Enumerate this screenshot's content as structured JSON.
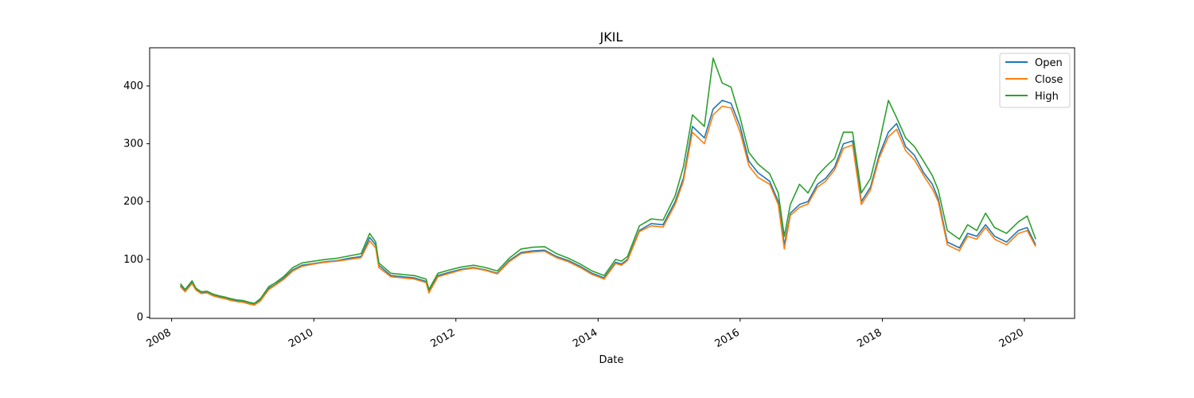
{
  "chart_data": {
    "type": "line",
    "title": "JKIL",
    "xlabel": "Date",
    "ylabel": "",
    "xlim": [
      "2007-09-10",
      "2020-09-15"
    ],
    "ylim": [
      -2,
      466
    ],
    "x_ticks": [
      "2008",
      "2010",
      "2012",
      "2014",
      "2016",
      "2018",
      "2020"
    ],
    "y_ticks": [
      0,
      100,
      200,
      300,
      400
    ],
    "grid": false,
    "legend_position": "top-right",
    "colors": {
      "Open": "#1f77b4",
      "Close": "#ff7f0e",
      "High": "#2ca02c"
    },
    "x": [
      "2008-02-15",
      "2008-03-10",
      "2008-04-15",
      "2008-05-05",
      "2008-06-01",
      "2008-07-01",
      "2008-08-01",
      "2008-09-01",
      "2008-10-01",
      "2008-11-01",
      "2008-12-01",
      "2009-01-01",
      "2009-02-01",
      "2009-03-01",
      "2009-04-01",
      "2009-05-15",
      "2009-06-15",
      "2009-08-01",
      "2009-09-15",
      "2009-11-01",
      "2010-01-01",
      "2010-03-01",
      "2010-05-01",
      "2010-07-01",
      "2010-09-01",
      "2010-10-15",
      "2010-11-15",
      "2010-12-01",
      "2011-02-01",
      "2011-04-01",
      "2011-06-01",
      "2011-08-01",
      "2011-08-15",
      "2011-10-01",
      "2011-12-01",
      "2012-02-01",
      "2012-04-01",
      "2012-06-01",
      "2012-08-01",
      "2012-10-01",
      "2012-12-01",
      "2013-02-01",
      "2013-04-01",
      "2013-06-01",
      "2013-08-01",
      "2013-10-01",
      "2013-12-01",
      "2014-02-01",
      "2014-04-01",
      "2014-05-01",
      "2014-06-01",
      "2014-08-01",
      "2014-10-01",
      "2014-12-01",
      "2015-02-01",
      "2015-03-15",
      "2015-05-01",
      "2015-07-01",
      "2015-08-15",
      "2015-10-01",
      "2015-11-15",
      "2016-01-01",
      "2016-02-15",
      "2016-04-01",
      "2016-06-01",
      "2016-07-15",
      "2016-08-15",
      "2016-09-15",
      "2016-11-01",
      "2016-12-15",
      "2017-02-01",
      "2017-03-15",
      "2017-05-01",
      "2017-06-15",
      "2017-08-01",
      "2017-09-15",
      "2017-11-01",
      "2017-12-15",
      "2018-02-01",
      "2018-03-15",
      "2018-05-01",
      "2018-06-15",
      "2018-08-01",
      "2018-09-15",
      "2018-10-15",
      "2018-12-01",
      "2019-02-01",
      "2019-03-15",
      "2019-05-01",
      "2019-06-15",
      "2019-08-01",
      "2019-10-01",
      "2019-12-01",
      "2020-01-15",
      "2020-02-28"
    ],
    "series": [
      {
        "name": "Open",
        "values": [
          55,
          45,
          60,
          48,
          42,
          43,
          38,
          35,
          33,
          30,
          28,
          27,
          24,
          22,
          30,
          50,
          56,
          68,
          82,
          90,
          93,
          96,
          98,
          102,
          105,
          138,
          125,
          90,
          72,
          70,
          68,
          62,
          45,
          72,
          78,
          83,
          86,
          82,
          76,
          98,
          112,
          115,
          116,
          105,
          98,
          88,
          76,
          68,
          95,
          92,
          100,
          150,
          162,
          160,
          200,
          240,
          330,
          310,
          360,
          375,
          370,
          330,
          270,
          250,
          235,
          200,
          125,
          180,
          195,
          200,
          230,
          240,
          260,
          300,
          305,
          200,
          225,
          280,
          320,
          335,
          295,
          280,
          250,
          230,
          205,
          130,
          120,
          145,
          140,
          160,
          140,
          130,
          150,
          155,
          125
        ]
      },
      {
        "name": "Close",
        "values": [
          53,
          44,
          58,
          47,
          41,
          42,
          37,
          34,
          32,
          29,
          27,
          26,
          23,
          21,
          28,
          48,
          55,
          66,
          80,
          88,
          92,
          95,
          97,
          100,
          103,
          132,
          120,
          86,
          70,
          68,
          66,
          60,
          42,
          70,
          76,
          82,
          85,
          81,
          75,
          96,
          110,
          113,
          114,
          103,
          96,
          86,
          74,
          66,
          93,
          90,
          98,
          148,
          158,
          156,
          195,
          235,
          320,
          300,
          350,
          365,
          362,
          320,
          262,
          242,
          230,
          195,
          118,
          176,
          190,
          196,
          225,
          235,
          255,
          292,
          298,
          195,
          220,
          275,
          312,
          325,
          288,
          272,
          245,
          222,
          200,
          125,
          115,
          140,
          135,
          155,
          135,
          125,
          145,
          150,
          122
        ]
      },
      {
        "name": "High",
        "values": [
          58,
          48,
          63,
          50,
          44,
          45,
          40,
          37,
          35,
          32,
          30,
          29,
          26,
          24,
          32,
          53,
          59,
          71,
          86,
          94,
          97,
          100,
          102,
          106,
          110,
          145,
          130,
          94,
          76,
          74,
          72,
          66,
          48,
          76,
          82,
          87,
          90,
          86,
          80,
          102,
          118,
          121,
          122,
          110,
          102,
          92,
          80,
          72,
          100,
          97,
          105,
          158,
          170,
          168,
          210,
          260,
          350,
          330,
          448,
          405,
          398,
          345,
          285,
          265,
          248,
          215,
          140,
          195,
          230,
          215,
          245,
          260,
          275,
          320,
          320,
          215,
          240,
          300,
          375,
          345,
          310,
          295,
          270,
          245,
          220,
          150,
          135,
          160,
          150,
          180,
          155,
          145,
          165,
          175,
          135
        ]
      }
    ]
  }
}
